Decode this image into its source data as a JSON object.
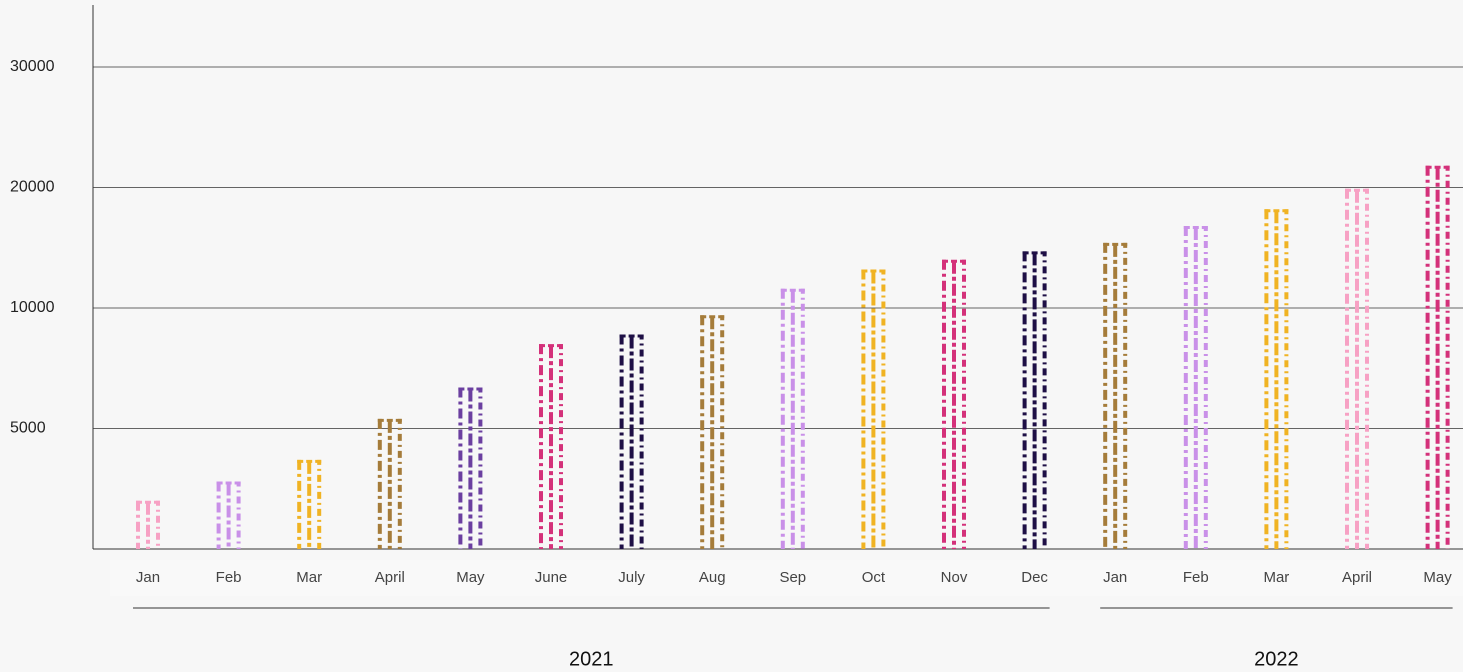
{
  "chart_data": {
    "type": "bar",
    "categories": [
      "Jan",
      "Feb",
      "Mar",
      "April",
      "May",
      "June",
      "July",
      "Aug",
      "Sep",
      "Oct",
      "Nov",
      "Dec",
      "Jan",
      "Feb",
      "Mar",
      "April",
      "May"
    ],
    "values": [
      2000,
      2800,
      3700,
      5400,
      6700,
      8500,
      8900,
      9700,
      11600,
      13200,
      14000,
      14700,
      15400,
      16800,
      18200,
      19900,
      21800
    ],
    "colors": [
      "#f7a1c4",
      "#c990e8",
      "#f0b323",
      "#a57c3a",
      "#6b3fa0",
      "#d4317a",
      "#1e0f45",
      "#a57c3a",
      "#c990e8",
      "#f0b323",
      "#d4317a",
      "#1e0f45",
      "#a57c3a",
      "#c990e8",
      "#f0b323",
      "#f7a1c4",
      "#d4317a"
    ],
    "groups": [
      {
        "name": "2021",
        "count": 12
      },
      {
        "name": "2022",
        "count": 5
      }
    ],
    "ylim": [
      0,
      35000
    ],
    "yticks": [
      5000,
      10000,
      20000,
      30000
    ],
    "grid": true
  }
}
